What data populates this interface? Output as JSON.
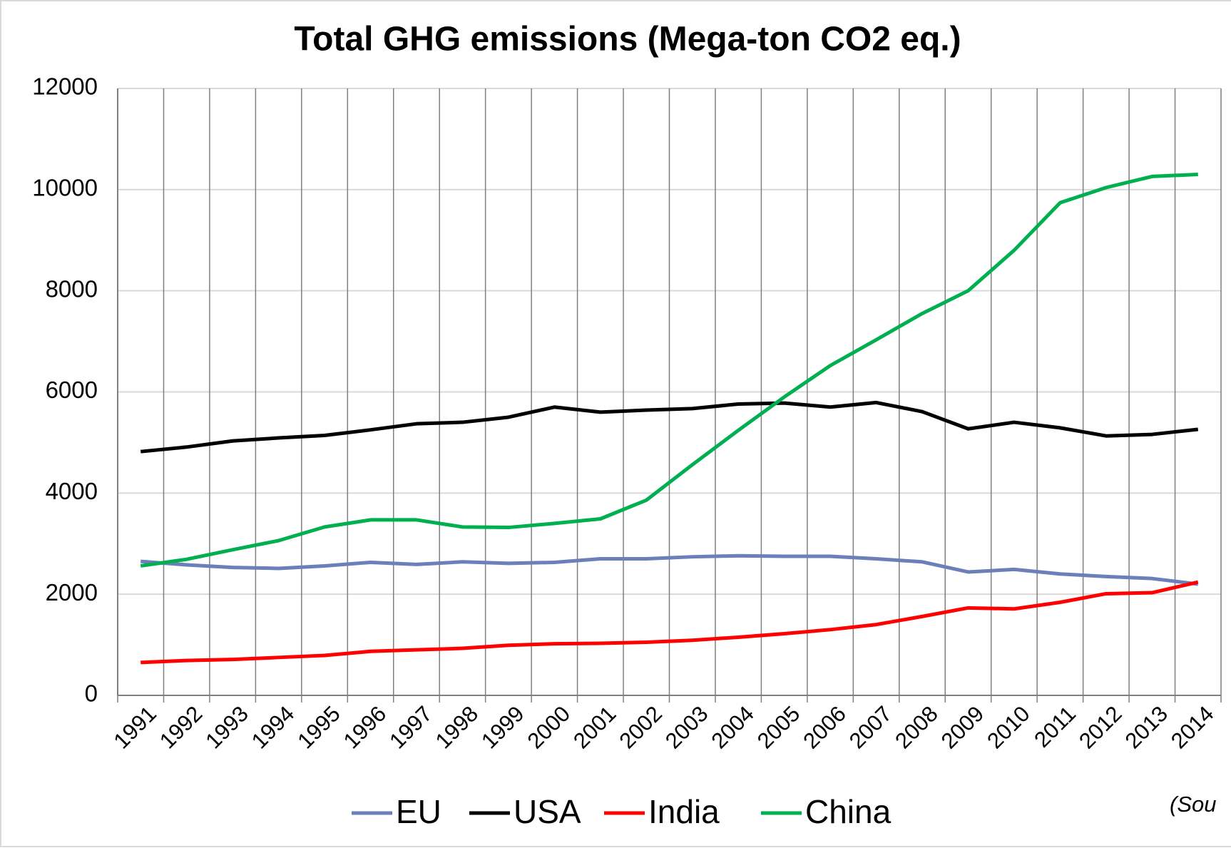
{
  "chart_data": {
    "type": "line",
    "title": "Total GHG emissions (Mega-ton CO2 eq.)",
    "categories": [
      "1991",
      "1992",
      "1993",
      "1994",
      "1995",
      "1996",
      "1997",
      "1998",
      "1999",
      "2000",
      "2001",
      "2002",
      "2003",
      "2004",
      "2005",
      "2006",
      "2007",
      "2008",
      "2009",
      "2010",
      "2011",
      "2012",
      "2013",
      "2014"
    ],
    "series": [
      {
        "name": "EU",
        "color": "#6b7fb8",
        "values": [
          2650,
          2580,
          2530,
          2510,
          2560,
          2630,
          2590,
          2640,
          2610,
          2630,
          2700,
          2700,
          2740,
          2760,
          2750,
          2750,
          2700,
          2640,
          2440,
          2490,
          2400,
          2350,
          2310,
          2200
        ]
      },
      {
        "name": "USA",
        "color": "#000000",
        "values": [
          4820,
          4910,
          5030,
          5090,
          5140,
          5250,
          5370,
          5400,
          5500,
          5700,
          5600,
          5640,
          5670,
          5760,
          5780,
          5700,
          5790,
          5610,
          5270,
          5400,
          5290,
          5130,
          5160,
          5260
        ]
      },
      {
        "name": "India",
        "color": "#ff0000",
        "values": [
          650,
          690,
          710,
          750,
          790,
          870,
          900,
          930,
          990,
          1020,
          1030,
          1050,
          1090,
          1150,
          1220,
          1300,
          1400,
          1560,
          1730,
          1710,
          1840,
          2010,
          2030,
          2240
        ]
      },
      {
        "name": "China",
        "color": "#00b050",
        "values": [
          2560,
          2690,
          2880,
          3060,
          3330,
          3470,
          3470,
          3330,
          3320,
          3400,
          3490,
          3860,
          4560,
          5240,
          5900,
          6520,
          7030,
          7550,
          8000,
          8800,
          9740,
          10040,
          10260,
          10300
        ]
      }
    ],
    "ylim": [
      0,
      12000
    ],
    "yticks": [
      0,
      2000,
      4000,
      6000,
      8000,
      10000,
      12000
    ],
    "grid": true,
    "legend": "bottom",
    "annotation": "(Sou"
  }
}
